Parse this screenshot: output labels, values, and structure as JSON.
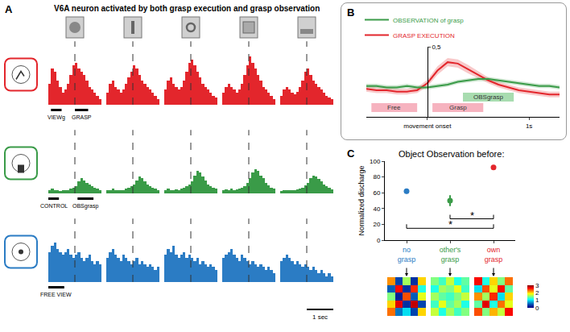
{
  "chart_data": [
    {
      "panel": "A",
      "type": "histogram",
      "title": "V6A neuron activated by both grasp execution and grasp observation",
      "bins": [
        -1,
        -0.9,
        -0.8,
        -0.7,
        -0.6,
        -0.5,
        -0.4,
        -0.3,
        -0.2,
        -0.1,
        0,
        0.1,
        0.2,
        0.3,
        0.4,
        0.5,
        0.6,
        0.7,
        0.8,
        0.9,
        1
      ],
      "xlim": [
        -1,
        1
      ],
      "ylim": [
        0,
        100
      ],
      "tick_labels": false,
      "alignment_time": 0,
      "scale_bar": {
        "label": "1 sec",
        "length": 1
      },
      "rows": [
        {
          "color": "#e3262c",
          "epochs": [
            {
              "label": "VIEWg",
              "range": [
                -0.9,
                -0.5
              ]
            },
            {
              "label": "GRASP",
              "range": [
                0,
                0.5
              ]
            }
          ],
          "counts": [
            [
              35,
              60,
              55,
              40,
              30,
              20,
              25,
              35,
              50,
              65,
              70,
              60,
              55,
              50,
              40,
              30,
              25,
              20,
              15,
              10
            ],
            [
              20,
              35,
              40,
              30,
              25,
              20,
              25,
              35,
              45,
              55,
              65,
              60,
              50,
              40,
              35,
              30,
              25,
              20,
              15,
              10
            ],
            [
              25,
              40,
              45,
              35,
              30,
              25,
              30,
              40,
              55,
              70,
              75,
              65,
              55,
              45,
              35,
              30,
              25,
              20,
              15,
              12
            ],
            [
              20,
              30,
              35,
              30,
              25,
              20,
              25,
              35,
              50,
              65,
              80,
              70,
              60,
              50,
              40,
              30,
              25,
              20,
              15,
              10
            ],
            [
              15,
              25,
              30,
              25,
              20,
              18,
              22,
              30,
              40,
              55,
              60,
              50,
              40,
              35,
              30,
              25,
              20,
              15,
              12,
              10
            ]
          ]
        },
        {
          "color": "#3a9b48",
          "epochs": [
            {
              "label": "CONTROL",
              "range": [
                -1,
                -0.6
              ]
            },
            {
              "label": "OBSgrasp",
              "range": [
                0.1,
                0.7
              ]
            }
          ],
          "counts": [
            [
              5,
              8,
              5,
              6,
              4,
              5,
              6,
              5,
              8,
              10,
              12,
              20,
              25,
              22,
              18,
              15,
              12,
              10,
              8,
              6
            ],
            [
              5,
              6,
              8,
              5,
              6,
              5,
              6,
              8,
              10,
              12,
              15,
              22,
              28,
              25,
              20,
              15,
              12,
              10,
              8,
              6
            ],
            [
              6,
              8,
              6,
              5,
              7,
              6,
              8,
              10,
              12,
              15,
              20,
              30,
              38,
              35,
              28,
              22,
              15,
              12,
              10,
              8
            ],
            [
              5,
              7,
              6,
              8,
              6,
              7,
              8,
              10,
              12,
              18,
              25,
              35,
              40,
              38,
              30,
              25,
              18,
              14,
              10,
              8
            ],
            [
              4,
              6,
              5,
              6,
              5,
              6,
              7,
              8,
              10,
              14,
              18,
              25,
              30,
              28,
              24,
              20,
              15,
              12,
              9,
              7
            ]
          ]
        },
        {
          "color": "#2b7cc4",
          "epochs": [
            {
              "label": "FREE VIEW",
              "range": [
                -1,
                -0.4
              ]
            }
          ],
          "counts": [
            [
              50,
              60,
              65,
              55,
              50,
              45,
              50,
              55,
              45,
              40,
              45,
              50,
              40,
              35,
              40,
              45,
              35,
              30,
              35,
              30
            ],
            [
              40,
              50,
              55,
              45,
              40,
              35,
              45,
              40,
              35,
              30,
              35,
              40,
              30,
              35,
              30,
              25,
              30,
              25,
              20,
              25
            ],
            [
              45,
              55,
              50,
              60,
              45,
              40,
              45,
              50,
              40,
              45,
              40,
              35,
              40,
              30,
              35,
              30,
              25,
              30,
              25,
              20
            ],
            [
              40,
              45,
              50,
              55,
              45,
              40,
              35,
              45,
              40,
              35,
              30,
              35,
              30,
              25,
              30,
              25,
              20,
              25,
              20,
              15
            ],
            [
              35,
              40,
              45,
              40,
              35,
              30,
              35,
              30,
              25,
              30,
              25,
              20,
              25,
              20,
              15,
              20,
              15,
              10,
              15,
              10
            ]
          ]
        }
      ]
    },
    {
      "panel": "B",
      "type": "line",
      "x": [
        -0.6,
        -0.5,
        -0.4,
        -0.3,
        -0.2,
        -0.1,
        0,
        0.1,
        0.2,
        0.3,
        0.4,
        0.5,
        0.6,
        0.7,
        0.8,
        0.9,
        1.0,
        1.1,
        1.2,
        1.3
      ],
      "xlim": [
        -0.6,
        1.3
      ],
      "xticks": [
        {
          "value": 0,
          "label": "movement onset"
        },
        {
          "value": 1,
          "label": "1s"
        }
      ],
      "ylim": [
        0,
        0.5
      ],
      "yticks": [
        {
          "value": 0.5,
          "label": "0,5"
        }
      ],
      "legend": "upper left",
      "series": [
        {
          "name": "GRASP EXECUTION",
          "color": "#e3262c",
          "values": [
            0.2,
            0.19,
            0.19,
            0.18,
            0.18,
            0.19,
            0.24,
            0.33,
            0.39,
            0.38,
            0.34,
            0.3,
            0.26,
            0.23,
            0.21,
            0.19,
            0.18,
            0.17,
            0.16,
            0.16
          ],
          "errors": [
            0.02,
            0.02,
            0.02,
            0.02,
            0.02,
            0.02,
            0.025,
            0.03,
            0.03,
            0.03,
            0.03,
            0.025,
            0.02,
            0.02,
            0.02,
            0.02,
            0.02,
            0.02,
            0.02,
            0.02
          ]
        },
        {
          "name": "OBSERVATION of grasp",
          "color": "#3a9b48",
          "values": [
            0.22,
            0.22,
            0.21,
            0.21,
            0.22,
            0.21,
            0.21,
            0.22,
            0.23,
            0.25,
            0.26,
            0.27,
            0.27,
            0.26,
            0.25,
            0.24,
            0.23,
            0.22,
            0.22,
            0.21
          ],
          "errors": [
            0.015,
            0.015,
            0.015,
            0.015,
            0.015,
            0.015,
            0.015,
            0.015,
            0.015,
            0.015,
            0.015,
            0.015,
            0.015,
            0.015,
            0.015,
            0.015,
            0.015,
            0.015,
            0.015,
            0.015
          ]
        }
      ],
      "epochs": [
        {
          "label": "Free",
          "range": [
            -0.55,
            -0.1
          ],
          "color": "#f6b3bf"
        },
        {
          "label": "Grasp",
          "range": [
            0.05,
            0.55
          ],
          "color": "#f6b3bf"
        },
        {
          "label": "OBSgrasp",
          "range": [
            0.35,
            0.85
          ],
          "color": "#a8dcb0"
        }
      ]
    },
    {
      "panel": "C",
      "type": "scatter",
      "title": "Object Observation before:",
      "y_label": "Normalized discharge",
      "categories": [
        "no grasp",
        "other's grasp",
        "own grasp"
      ],
      "values": [
        62,
        50,
        92
      ],
      "errors": [
        3,
        7,
        3
      ],
      "colors": [
        "#2b7cc4",
        "#3a9b48",
        "#e3262c"
      ],
      "marker": "circle",
      "ylim": [
        0,
        100
      ],
      "yticks": [
        0,
        20,
        40,
        60,
        80,
        100
      ],
      "significance": [
        {
          "from": "other's grasp",
          "to": "own grasp",
          "label": "*",
          "y": 27
        },
        {
          "from": "no grasp",
          "to": "own grasp",
          "label": "*",
          "y": 15
        }
      ],
      "matrices": [
        {
          "category": "no grasp",
          "cells": [
            [
              2.2,
              0.4,
              1.6,
              0.3,
              2.0
            ],
            [
              0.5,
              2.6,
              0.3,
              2.5,
              1.2
            ],
            [
              1.5,
              0.2,
              2.4,
              0.5,
              1.8
            ],
            [
              2.0,
              2.7,
              0.3,
              2.8,
              0.4
            ],
            [
              2.3,
              0.6,
              1.0,
              0.4,
              2.0
            ]
          ]
        },
        {
          "category": "other's grasp",
          "cells": [
            [
              1.5,
              1.3,
              1.7,
              1.2,
              1.4
            ],
            [
              1.2,
              1.6,
              1.5,
              1.8,
              1.3
            ],
            [
              1.6,
              1.4,
              1.3,
              1.5,
              1.7
            ],
            [
              1.3,
              1.8,
              1.4,
              1.6,
              1.2
            ],
            [
              1.7,
              1.2,
              1.6,
              1.3,
              1.5
            ]
          ]
        },
        {
          "category": "own grasp",
          "cells": [
            [
              2.6,
              1.2,
              2.0,
              1.5,
              2.3
            ],
            [
              1.0,
              2.4,
              1.8,
              2.6,
              1.4
            ],
            [
              2.2,
              1.6,
              2.5,
              1.0,
              2.0
            ],
            [
              1.4,
              2.7,
              1.2,
              2.3,
              1.8
            ],
            [
              2.4,
              1.5,
              2.1,
              1.7,
              2.6
            ]
          ]
        }
      ],
      "colorbar": {
        "range": [
          0,
          3
        ],
        "ticks": [
          0,
          1,
          2,
          3
        ]
      }
    }
  ]
}
